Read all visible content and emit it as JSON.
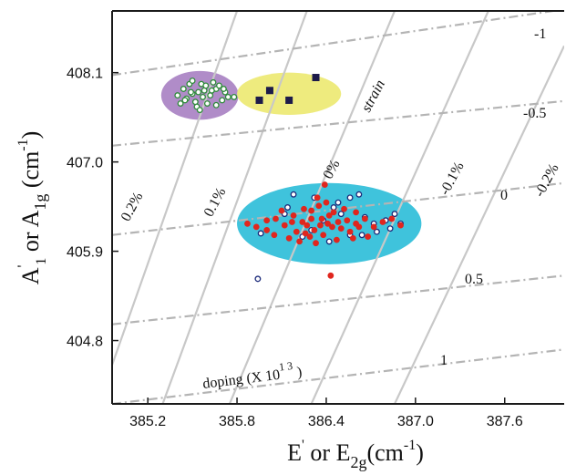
{
  "chart_data": {
    "type": "scatter",
    "title": "",
    "xlabel": {
      "main": "E",
      "prime": "'",
      "or": " or E",
      "sub": "2g",
      "unit": "(cm",
      "exp": "-1",
      "close": ")"
    },
    "ylabel": {
      "main": "A",
      "prime": "'",
      "sub1": "1",
      "or": " or A",
      "sub2": "1g",
      "unit": " (cm",
      "exp": "-1",
      "close": ")"
    },
    "xlim": [
      384.96,
      388.0
    ],
    "ylim": [
      404.02,
      408.86
    ],
    "x_ticks": [
      385.2,
      385.8,
      386.4,
      387.0,
      387.6
    ],
    "x_tick_labels": [
      "385.2",
      "385.8",
      "386.4",
      "387.0",
      "387.6"
    ],
    "y_ticks": [
      404.8,
      405.9,
      407.0,
      408.1
    ],
    "y_tick_labels": [
      "404.8",
      "405.9",
      "407.0",
      "408.1"
    ],
    "strain_lines": [
      {
        "label": "0.2%",
        "points": [
          [
            384.96,
            404.5
          ],
          [
            385.8,
            408.86
          ]
        ]
      },
      {
        "label": "0.1%",
        "points": [
          [
            385.3,
            404.02
          ],
          [
            386.27,
            408.86
          ]
        ]
      },
      {
        "label": "0%",
        "points": [
          [
            385.75,
            404.02
          ],
          [
            386.86,
            408.86
          ]
        ]
      },
      {
        "label": "-0.1%",
        "points": [
          [
            386.3,
            404.02
          ],
          [
            387.49,
            408.86
          ]
        ]
      },
      {
        "label": "-0.2%",
        "points": [
          [
            386.86,
            404.02
          ],
          [
            388.0,
            408.43
          ]
        ]
      }
    ],
    "strain_axis_label": "strain",
    "doping_lines": [
      {
        "label": "-1",
        "points": [
          [
            384.96,
            408.07
          ],
          [
            388.0,
            408.88
          ]
        ]
      },
      {
        "label": "-0.5",
        "points": [
          [
            384.96,
            407.2
          ],
          [
            388.0,
            407.75
          ]
        ]
      },
      {
        "label": "0",
        "points": [
          [
            384.96,
            406.1
          ],
          [
            388.0,
            406.74
          ]
        ]
      },
      {
        "label": "0.5",
        "points": [
          [
            384.96,
            405.0
          ],
          [
            388.0,
            405.6
          ]
        ]
      },
      {
        "label": "1",
        "points": [
          [
            384.96,
            404.02
          ],
          [
            388.0,
            404.69
          ]
        ]
      }
    ],
    "doping_axis_label": {
      "text": "doping (X 10",
      "exp": "1 3",
      "close": " )"
    },
    "ellipses": [
      {
        "name": "purple",
        "color": "#b08cc8",
        "cx": 385.55,
        "cy": 407.82,
        "rx": 0.26,
        "ry": 0.3
      },
      {
        "name": "yellow",
        "color": "#eeeb7e",
        "cx": 386.15,
        "cy": 407.84,
        "rx": 0.35,
        "ry": 0.26
      },
      {
        "name": "cyan",
        "color": "#3fc3dc",
        "cx": 386.42,
        "cy": 406.24,
        "rx": 0.62,
        "ry": 0.5
      }
    ],
    "series": [
      {
        "marker": "circle",
        "fill": "#ffffff",
        "stroke": "#2e8b3a",
        "values": [
          [
            385.42,
            407.72
          ],
          [
            385.46,
            407.78
          ],
          [
            385.5,
            407.84
          ],
          [
            385.54,
            407.86
          ],
          [
            385.58,
            407.88
          ],
          [
            385.62,
            407.82
          ],
          [
            385.66,
            407.9
          ],
          [
            385.7,
            407.76
          ],
          [
            385.44,
            407.9
          ],
          [
            385.52,
            407.74
          ],
          [
            385.56,
            407.96
          ],
          [
            385.6,
            407.72
          ],
          [
            385.64,
            407.98
          ],
          [
            385.68,
            407.94
          ],
          [
            385.72,
            407.86
          ],
          [
            385.48,
            407.96
          ],
          [
            385.4,
            407.82
          ],
          [
            385.74,
            407.8
          ],
          [
            385.53,
            407.68
          ],
          [
            385.66,
            407.7
          ],
          [
            385.57,
            407.8
          ],
          [
            385.63,
            407.88
          ],
          [
            385.49,
            407.86
          ],
          [
            385.71,
            407.9
          ],
          [
            385.59,
            407.94
          ],
          [
            385.45,
            407.76
          ],
          [
            385.78,
            407.8
          ],
          [
            385.55,
            407.64
          ],
          [
            385.5,
            408.0
          ]
        ]
      },
      {
        "marker": "square",
        "fill": "#1c1a4a",
        "stroke": "#1c1a4a",
        "values": [
          [
            385.95,
            407.76
          ],
          [
            386.02,
            407.88
          ],
          [
            386.15,
            407.76
          ],
          [
            386.33,
            408.04
          ]
        ]
      },
      {
        "marker": "circle",
        "fill": "#ffffff",
        "stroke": "#1c2a7a",
        "values": [
          [
            385.96,
            406.12
          ],
          [
            386.18,
            406.6
          ],
          [
            386.32,
            406.56
          ],
          [
            386.45,
            406.44
          ],
          [
            386.56,
            406.56
          ],
          [
            386.62,
            406.6
          ],
          [
            386.72,
            406.24
          ],
          [
            386.8,
            406.28
          ],
          [
            386.9,
            406.24
          ],
          [
            386.56,
            406.1
          ],
          [
            386.42,
            406.02
          ],
          [
            386.3,
            406.16
          ],
          [
            386.12,
            406.36
          ],
          [
            386.66,
            406.32
          ],
          [
            386.74,
            406.14
          ],
          [
            386.24,
            406.08
          ],
          [
            386.38,
            406.28
          ],
          [
            386.5,
            406.36
          ],
          [
            386.86,
            406.36
          ],
          [
            385.94,
            405.56
          ],
          [
            386.14,
            406.44
          ],
          [
            386.64,
            406.1
          ],
          [
            386.83,
            406.18
          ],
          [
            386.48,
            406.5
          ]
        ]
      },
      {
        "marker": "circle",
        "fill": "#e0261e",
        "stroke": "#e0261e",
        "values": [
          [
            385.87,
            406.24
          ],
          [
            385.93,
            406.2
          ],
          [
            386.0,
            406.28
          ],
          [
            386.06,
            406.3
          ],
          [
            386.12,
            406.22
          ],
          [
            386.18,
            406.34
          ],
          [
            386.24,
            406.26
          ],
          [
            386.3,
            406.3
          ],
          [
            386.36,
            406.22
          ],
          [
            386.42,
            406.34
          ],
          [
            386.48,
            406.26
          ],
          [
            386.54,
            406.28
          ],
          [
            386.6,
            406.24
          ],
          [
            386.66,
            406.3
          ],
          [
            386.72,
            406.2
          ],
          [
            386.78,
            406.26
          ],
          [
            386.84,
            406.3
          ],
          [
            386.9,
            406.22
          ],
          [
            386.2,
            406.14
          ],
          [
            386.26,
            406.12
          ],
          [
            386.32,
            406.16
          ],
          [
            386.38,
            406.1
          ],
          [
            386.44,
            406.2
          ],
          [
            386.5,
            406.18
          ],
          [
            386.56,
            406.14
          ],
          [
            386.62,
            406.2
          ],
          [
            386.3,
            406.4
          ],
          [
            386.35,
            406.46
          ],
          [
            386.4,
            406.5
          ],
          [
            386.45,
            406.38
          ],
          [
            386.25,
            406.42
          ],
          [
            386.1,
            406.4
          ],
          [
            386.05,
            406.1
          ],
          [
            386.15,
            406.06
          ],
          [
            386.22,
            406.02
          ],
          [
            386.33,
            406.0
          ],
          [
            386.47,
            406.04
          ],
          [
            386.58,
            406.06
          ],
          [
            386.68,
            406.08
          ],
          [
            386.39,
            406.72
          ],
          [
            386.43,
            405.6
          ],
          [
            386.6,
            406.38
          ],
          [
            386.52,
            406.42
          ],
          [
            386.0,
            406.16
          ],
          [
            386.34,
            406.56
          ],
          [
            386.27,
            406.22
          ],
          [
            386.41,
            406.24
          ],
          [
            386.29,
            406.08
          ],
          [
            386.37,
            406.3
          ],
          [
            386.17,
            406.26
          ]
        ]
      }
    ],
    "grid": false,
    "legend": "none",
    "colors": {
      "axes": "#1a1a1a",
      "strain_lines": "#c8c8c8",
      "doping_lines": "#b4b4b4"
    }
  }
}
